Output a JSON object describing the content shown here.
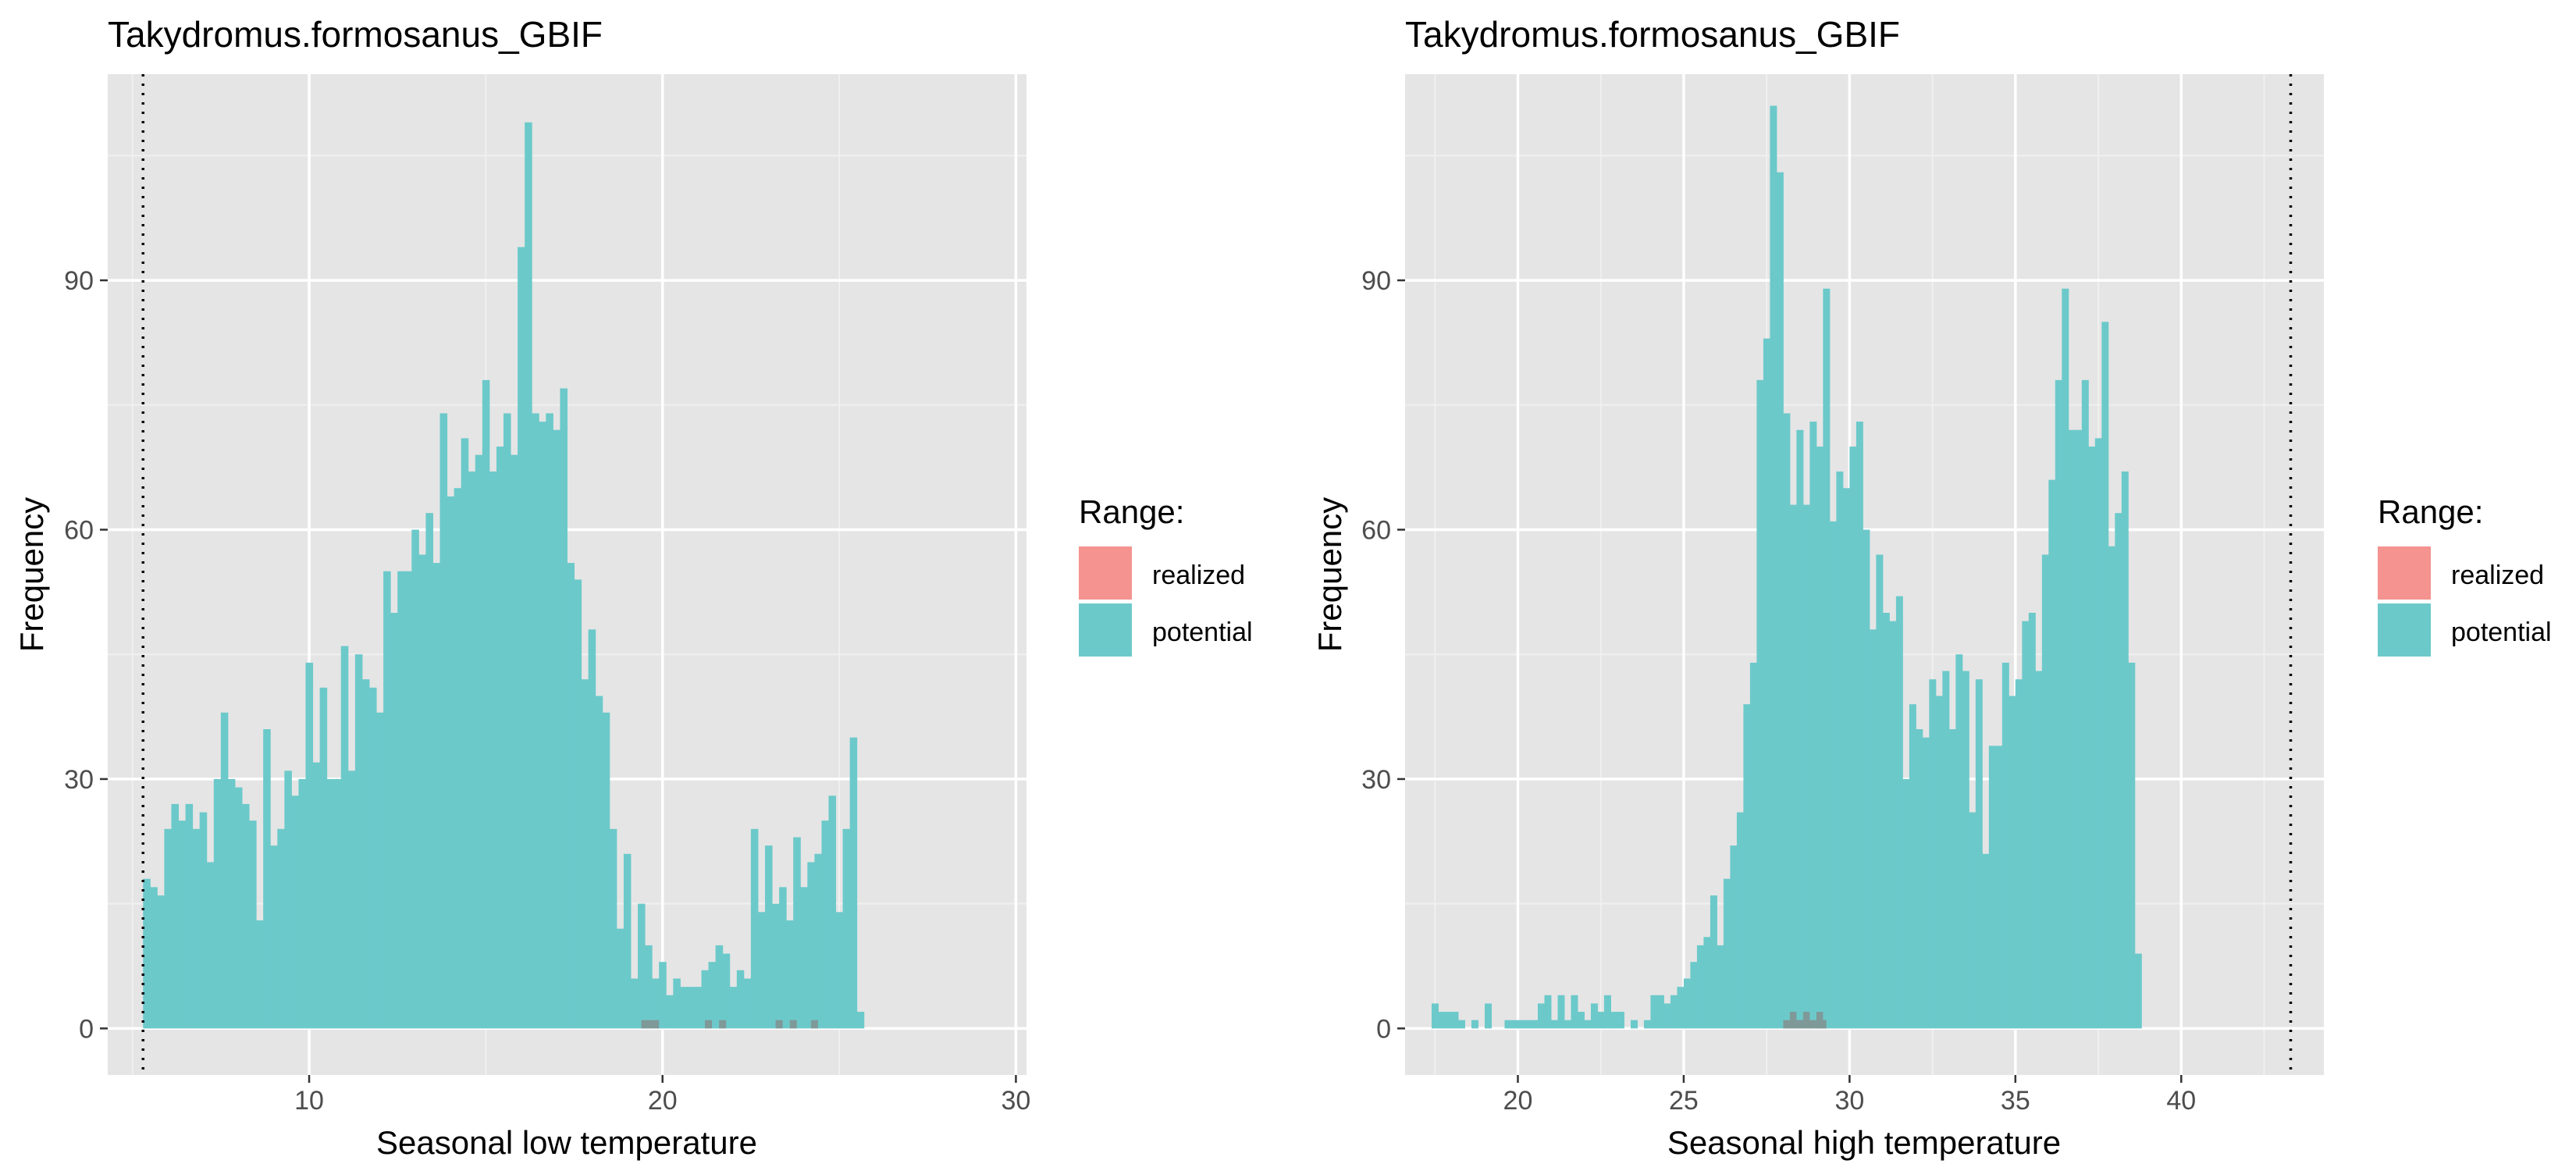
{
  "colors": {
    "panel_bg": "#E5E5E5",
    "grid_major": "#FFFFFF",
    "grid_minor": "#F0F0F0",
    "potential": "#6CC9CA",
    "realized": "#F4938F",
    "overlap": "#7F9898",
    "tick_text": "#4D4D4D",
    "title_text": "#000000"
  },
  "chart_data": [
    {
      "type": "bar",
      "title": "Takydromus.formosanus_GBIF",
      "xlabel": "Seasonal low temperature",
      "ylabel": "Frequency",
      "xlim": [
        4.3,
        30.3
      ],
      "ylim": [
        -5.6,
        114.8
      ],
      "xticks": [
        10,
        20,
        30
      ],
      "yticks": [
        0,
        30,
        60,
        90
      ],
      "xtick_labels": [
        "10",
        "20",
        "30"
      ],
      "ytick_labels": [
        "0",
        "30",
        "60",
        "90"
      ],
      "bin_start": 5.3,
      "bin_width": 0.2,
      "vline": 5.3,
      "legend": {
        "title": "Range:",
        "entries": [
          {
            "label": "realized",
            "color": "#F4938F"
          },
          {
            "label": "potential",
            "color": "#6CC9CA"
          }
        ]
      },
      "series": [
        {
          "name": "potential",
          "values": [
            18,
            17,
            16,
            24,
            27,
            25,
            27,
            24,
            26,
            20,
            30,
            38,
            30,
            29,
            27,
            25,
            13,
            36,
            22,
            24,
            31,
            28,
            30,
            44,
            32,
            41,
            30,
            30,
            46,
            31,
            45,
            42,
            41,
            38,
            55,
            50,
            55,
            55,
            60,
            57,
            62,
            56,
            74,
            64,
            65,
            71,
            67,
            69,
            78,
            67,
            70,
            74,
            69,
            94,
            109,
            74,
            73,
            74,
            72,
            77,
            56,
            54,
            42,
            48,
            40,
            38,
            24,
            12,
            21,
            6,
            15,
            10,
            6,
            8,
            4,
            6,
            5,
            5,
            5,
            7,
            8,
            10,
            9,
            5,
            7,
            6,
            24,
            14,
            22,
            15,
            17,
            13,
            23,
            17,
            20,
            21,
            25,
            28,
            14,
            24,
            35,
            2
          ]
        },
        {
          "name": "realized",
          "values": []
        }
      ],
      "overlap_bins": [
        {
          "x": 19.4,
          "width": 0.5,
          "value": 1
        },
        {
          "x": 21.2,
          "width": 0.2,
          "value": 1
        },
        {
          "x": 21.6,
          "width": 0.2,
          "value": 1
        },
        {
          "x": 23.2,
          "width": 0.2,
          "value": 1
        },
        {
          "x": 23.6,
          "width": 0.2,
          "value": 1
        },
        {
          "x": 24.2,
          "width": 0.2,
          "value": 1
        }
      ]
    },
    {
      "type": "bar",
      "title": "Takydromus.formosanus_GBIF",
      "xlabel": "Seasonal high temperature",
      "ylabel": "Frequency",
      "xlim": [
        16.6,
        44.3
      ],
      "ylim": [
        -5.6,
        114.8
      ],
      "xticks": [
        20,
        25,
        30,
        35,
        40
      ],
      "yticks": [
        0,
        30,
        60,
        90
      ],
      "xtick_labels": [
        "20",
        "25",
        "30",
        "35",
        "40"
      ],
      "ytick_labels": [
        "0",
        "30",
        "60",
        "90"
      ],
      "bin_start": 17.4,
      "bin_width": 0.2,
      "vline": 43.3,
      "legend": {
        "title": "Range:",
        "entries": [
          {
            "label": "realized",
            "color": "#F4938F"
          },
          {
            "label": "potential",
            "color": "#6CC9CA"
          }
        ]
      },
      "series": [
        {
          "name": "potential",
          "values": [
            3,
            2,
            2,
            2,
            1,
            0,
            1,
            0,
            3,
            0,
            0,
            1,
            1,
            1,
            1,
            1,
            3,
            4,
            1,
            4,
            1,
            4,
            2,
            1,
            3,
            2,
            4,
            2,
            2,
            0,
            1,
            0,
            1,
            4,
            4,
            3,
            4,
            5,
            6,
            8,
            10,
            11,
            16,
            10,
            18,
            22,
            26,
            39,
            44,
            78,
            83,
            111,
            103,
            74,
            63,
            72,
            63,
            73,
            70,
            89,
            61,
            67,
            65,
            70,
            73,
            60,
            48,
            57,
            50,
            49,
            52,
            30,
            39,
            36,
            35,
            42,
            40,
            43,
            36,
            45,
            43,
            26,
            42,
            21,
            34,
            34,
            44,
            40,
            42,
            49,
            50,
            43,
            57,
            66,
            78,
            89,
            72,
            72,
            78,
            70,
            71,
            85,
            58,
            62,
            67,
            44,
            9
          ]
        },
        {
          "name": "realized",
          "values": []
        }
      ],
      "overlap_bins": [
        {
          "x": 28.0,
          "width": 1.3,
          "value": 1
        },
        {
          "x": 28.2,
          "width": 0.2,
          "value": 2
        },
        {
          "x": 28.6,
          "width": 0.2,
          "value": 2
        },
        {
          "x": 29.0,
          "width": 0.2,
          "value": 2
        }
      ]
    }
  ]
}
